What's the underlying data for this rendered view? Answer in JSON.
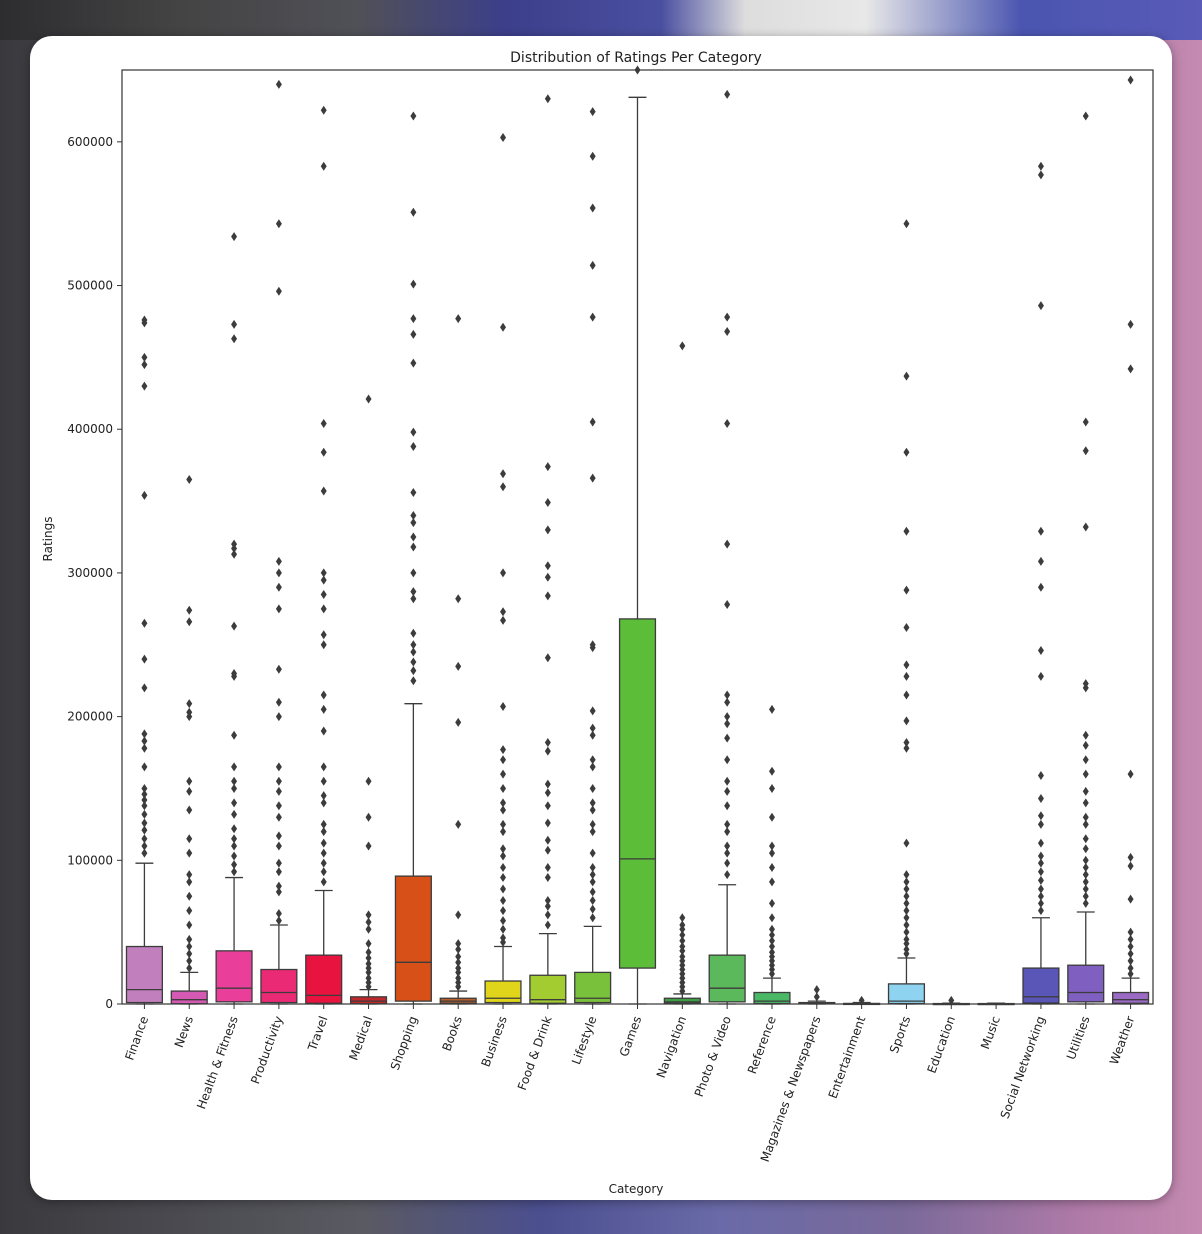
{
  "chart_data": {
    "type": "box",
    "title": "Distribution of Ratings Per Category",
    "xlabel": "Category",
    "ylabel": "Ratings",
    "ylim": [
      0,
      650000
    ],
    "yticks": [
      0,
      100000,
      200000,
      300000,
      400000,
      500000,
      600000
    ],
    "ytick_labels": [
      "0",
      "100000",
      "200000",
      "300000",
      "400000",
      "500000",
      "600000"
    ],
    "categories": [
      {
        "name": "Finance",
        "color": "#c27fbd",
        "q1": 1000,
        "median": 10000,
        "q3": 40000,
        "whislo": 0,
        "whishi": 98000,
        "outliers": [
          476000,
          474000,
          450000,
          445000,
          430000,
          354000,
          265000,
          240000,
          220000,
          188000,
          183000,
          178000,
          165000,
          150000,
          146000,
          142000,
          138000,
          132000,
          126000,
          121000,
          115000,
          110000,
          105000
        ]
      },
      {
        "name": "News",
        "color": "#d459b3",
        "q1": 200,
        "median": 3000,
        "q3": 9000,
        "whislo": 0,
        "whishi": 22000,
        "outliers": [
          365000,
          274000,
          266000,
          209000,
          203000,
          200000,
          155000,
          148000,
          135000,
          115000,
          105000,
          90000,
          85000,
          75000,
          65000,
          55000,
          45000,
          40000,
          35000,
          30000,
          25000
        ]
      },
      {
        "name": "Health & Fitness",
        "color": "#ea3e9b",
        "q1": 1500,
        "median": 11000,
        "q3": 37000,
        "whislo": 0,
        "whishi": 88000,
        "outliers": [
          534000,
          473000,
          463000,
          320000,
          317000,
          313000,
          263000,
          230000,
          228000,
          187000,
          165000,
          155000,
          150000,
          140000,
          132000,
          122000,
          115000,
          110000,
          103000,
          97000,
          92000
        ]
      },
      {
        "name": "Productivity",
        "color": "#ea2a74",
        "q1": 1000,
        "median": 8000,
        "q3": 24000,
        "whislo": 0,
        "whishi": 55000,
        "outliers": [
          640000,
          543000,
          496000,
          308000,
          300000,
          290000,
          275000,
          233000,
          210000,
          200000,
          165000,
          155000,
          148000,
          138000,
          130000,
          117000,
          110000,
          98000,
          92000,
          82000,
          78000,
          63000,
          58000
        ]
      },
      {
        "name": "Travel",
        "color": "#e8133e",
        "q1": 500,
        "median": 6000,
        "q3": 34000,
        "whislo": 0,
        "whishi": 79000,
        "outliers": [
          622000,
          583000,
          404000,
          384000,
          357000,
          300000,
          295000,
          285000,
          275000,
          257000,
          250000,
          215000,
          205000,
          190000,
          165000,
          155000,
          145000,
          140000,
          125000,
          120000,
          112000,
          105000,
          98000,
          92000,
          85000
        ]
      },
      {
        "name": "Medical",
        "color": "#c0282a",
        "q1": 200,
        "median": 2000,
        "q3": 5000,
        "whislo": 0,
        "whishi": 10000,
        "outliers": [
          421000,
          155000,
          130000,
          110000,
          62000,
          57000,
          52000,
          42000,
          36000,
          32000,
          28000,
          25000,
          22000,
          18000,
          15000,
          12000
        ]
      },
      {
        "name": "Shopping",
        "color": "#d65018",
        "q1": 2000,
        "median": 29000,
        "q3": 89000,
        "whislo": 0,
        "whishi": 209000,
        "outliers": [
          618000,
          551000,
          501000,
          477000,
          466000,
          446000,
          398000,
          388000,
          356000,
          340000,
          335000,
          325000,
          318000,
          300000,
          287000,
          282000,
          258000,
          250000,
          245000,
          238000,
          232000,
          225000
        ]
      },
      {
        "name": "Books",
        "color": "#b85f2a",
        "q1": 500,
        "median": 2000,
        "q3": 4000,
        "whislo": 0,
        "whishi": 9000,
        "outliers": [
          477000,
          282000,
          235000,
          196000,
          125000,
          62000,
          42000,
          38000,
          33000,
          29000,
          25000,
          22000,
          18000,
          15000,
          12000
        ]
      },
      {
        "name": "Business",
        "color": "#e0d51a",
        "q1": 1000,
        "median": 4000,
        "q3": 16000,
        "whislo": 0,
        "whishi": 40000,
        "outliers": [
          603000,
          471000,
          369000,
          360000,
          300000,
          273000,
          267000,
          207000,
          177000,
          170000,
          160000,
          150000,
          140000,
          135000,
          125000,
          120000,
          108000,
          103000,
          95000,
          88000,
          80000,
          72000,
          65000,
          58000,
          52000,
          46000,
          43000
        ]
      },
      {
        "name": "Food & Drink",
        "color": "#a2cc30",
        "q1": 500,
        "median": 3000,
        "q3": 20000,
        "whislo": 0,
        "whishi": 49000,
        "outliers": [
          630000,
          374000,
          349000,
          330000,
          305000,
          297000,
          284000,
          241000,
          182000,
          176000,
          153000,
          147000,
          138000,
          126000,
          114000,
          107000,
          95000,
          88000,
          72000,
          68000,
          62000,
          55000
        ]
      },
      {
        "name": "Lifestyle",
        "color": "#79c13b",
        "q1": 1000,
        "median": 4000,
        "q3": 22000,
        "whislo": 0,
        "whishi": 54000,
        "outliers": [
          621000,
          590000,
          554000,
          514000,
          478000,
          405000,
          366000,
          250000,
          248000,
          204000,
          192000,
          187000,
          170000,
          165000,
          150000,
          140000,
          135000,
          125000,
          120000,
          105000,
          95000,
          90000,
          85000,
          78000,
          72000,
          66000,
          60000
        ]
      },
      {
        "name": "Games",
        "color": "#5cbd39",
        "q1": 25000,
        "median": 101000,
        "q3": 268000,
        "whislo": 0,
        "whishi": 631000,
        "outliers": [
          650000
        ]
      },
      {
        "name": "Navigation",
        "color": "#3e9e44",
        "q1": 500,
        "median": 1500,
        "q3": 4000,
        "whislo": 0,
        "whishi": 7000,
        "outliers": [
          458000,
          60000,
          55000,
          52000,
          48000,
          44000,
          40000,
          37000,
          33000,
          30000,
          27000,
          24000,
          21000,
          18000,
          15000,
          12000,
          9000
        ]
      },
      {
        "name": "Photo & Video",
        "color": "#5bb95c",
        "q1": 1500,
        "median": 11000,
        "q3": 34000,
        "whislo": 0,
        "whishi": 83000,
        "outliers": [
          633000,
          478000,
          468000,
          404000,
          320000,
          278000,
          215000,
          210000,
          200000,
          195000,
          185000,
          170000,
          155000,
          148000,
          138000,
          125000,
          120000,
          110000,
          105000,
          98000,
          90000
        ]
      },
      {
        "name": "Reference",
        "color": "#4ab865",
        "q1": 300,
        "median": 2000,
        "q3": 8000,
        "whislo": 0,
        "whishi": 18000,
        "outliers": [
          205000,
          162000,
          150000,
          130000,
          110000,
          105000,
          95000,
          85000,
          70000,
          60000,
          52000,
          48000,
          44000,
          40000,
          36000,
          33000,
          30000,
          27000,
          24000,
          21000
        ]
      },
      {
        "name": "Magazines & Newspapers",
        "color": "#3aa9a0",
        "q1": 100,
        "median": 300,
        "q3": 1000,
        "whislo": 0,
        "whishi": 2000,
        "outliers": [
          10000,
          5000
        ]
      },
      {
        "name": "Entertainment",
        "color": "#3eaccc",
        "q1": 50,
        "median": 150,
        "q3": 400,
        "whislo": 0,
        "whishi": 1000,
        "outliers": [
          2500
        ]
      },
      {
        "name": "Sports",
        "color": "#8ed3f0",
        "q1": 300,
        "median": 2000,
        "q3": 14000,
        "whislo": 0,
        "whishi": 32000,
        "outliers": [
          543000,
          437000,
          384000,
          329000,
          288000,
          262000,
          236000,
          228000,
          215000,
          197000,
          182000,
          178000,
          112000,
          90000,
          85000,
          80000,
          75000,
          70000,
          65000,
          60000,
          55000,
          50000,
          45000,
          42000,
          38000,
          35000
        ]
      },
      {
        "name": "Education",
        "color": "#6f9ad0",
        "q1": 50,
        "median": 100,
        "q3": 300,
        "whislo": 0,
        "whishi": 600,
        "outliers": [
          2500
        ]
      },
      {
        "name": "Music",
        "color": "#6070c0",
        "q1": 50,
        "median": 100,
        "q3": 300,
        "whislo": 0,
        "whishi": 600,
        "outliers": []
      },
      {
        "name": "Social Networking",
        "color": "#5a56b8",
        "q1": 700,
        "median": 5000,
        "q3": 25000,
        "whislo": 0,
        "whishi": 60000,
        "outliers": [
          583000,
          577000,
          486000,
          329000,
          308000,
          290000,
          246000,
          228000,
          159000,
          143000,
          131000,
          125000,
          112000,
          103000,
          98000,
          92000,
          86000,
          80000,
          75000,
          70000,
          65000
        ]
      },
      {
        "name": "Utilities",
        "color": "#7f5fbf",
        "q1": 1500,
        "median": 8000,
        "q3": 27000,
        "whislo": 0,
        "whishi": 64000,
        "outliers": [
          618000,
          405000,
          385000,
          332000,
          223000,
          220000,
          187000,
          180000,
          170000,
          160000,
          148000,
          140000,
          130000,
          125000,
          115000,
          108000,
          100000,
          95000,
          90000,
          85000,
          80000,
          75000,
          70000
        ]
      },
      {
        "name": "Weather",
        "color": "#9a6ac4",
        "q1": 500,
        "median": 3000,
        "q3": 8000,
        "whislo": 0,
        "whishi": 18000,
        "outliers": [
          643000,
          473000,
          442000,
          160000,
          102000,
          96000,
          73000,
          50000,
          45000,
          40000,
          35000,
          30000,
          25000,
          21000
        ]
      }
    ]
  }
}
